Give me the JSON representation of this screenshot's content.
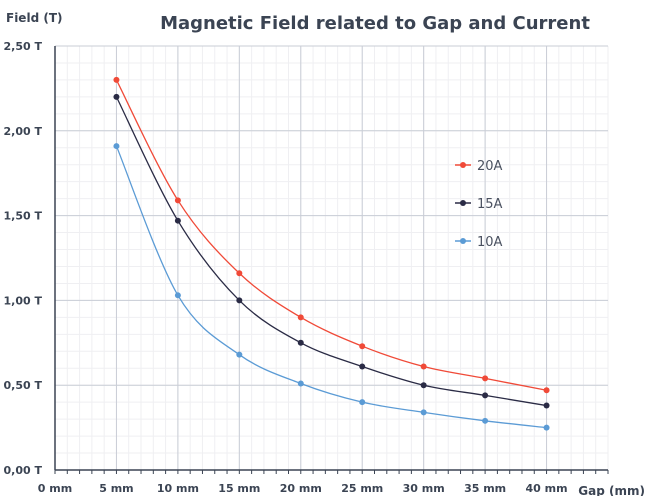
{
  "chart_data": {
    "type": "line",
    "title": "Magnetic Field related to Gap and Current",
    "xlabel": "Gap (mm)",
    "ylabel": "Field (T)",
    "x_tick_labels": [
      "0 mm",
      "5 mm",
      "10 mm",
      "15 mm",
      "20 mm",
      "25 mm",
      "30 mm",
      "35 mm",
      "40 mm"
    ],
    "y_tick_labels": [
      "0,00 T",
      "0,50 T",
      "1,00 T",
      "1,50 T",
      "2,00 T",
      "2,50 T"
    ],
    "xlim": [
      0,
      45
    ],
    "ylim": [
      0,
      2.5
    ],
    "x_ticks": [
      0,
      5,
      10,
      15,
      20,
      25,
      30,
      35,
      40
    ],
    "y_ticks": [
      0,
      0.5,
      1.0,
      1.5,
      2.0,
      2.5
    ],
    "x": [
      5,
      10,
      15,
      20,
      25,
      30,
      35,
      40
    ],
    "grid": true,
    "legend_position": "right",
    "series": [
      {
        "name": "20A",
        "color": "#f04a38",
        "values": [
          2.3,
          1.59,
          1.16,
          0.9,
          0.73,
          0.61,
          0.54,
          0.47
        ]
      },
      {
        "name": "15A",
        "color": "#2a2b45",
        "values": [
          2.2,
          1.47,
          1.0,
          0.75,
          0.61,
          0.5,
          0.44,
          0.38
        ]
      },
      {
        "name": "10A",
        "color": "#5b9bd5",
        "values": [
          1.91,
          1.03,
          0.68,
          0.51,
          0.4,
          0.34,
          0.29,
          0.25
        ]
      }
    ]
  }
}
